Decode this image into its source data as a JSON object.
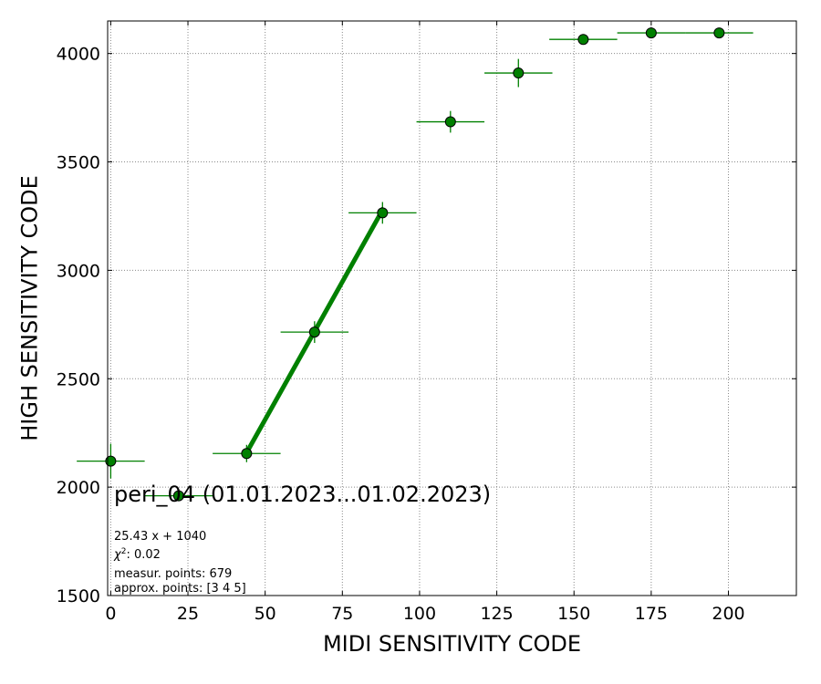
{
  "chart_data": {
    "type": "scatter",
    "xlabel": "MIDI SENSITIVITY CODE",
    "ylabel": "HIGH SENSITIVITY CODE",
    "xlim": [
      -1,
      222
    ],
    "ylim": [
      1500,
      4150
    ],
    "x_ticks": [
      0,
      25,
      50,
      75,
      100,
      125,
      150,
      175,
      200
    ],
    "y_ticks": [
      1500,
      2000,
      2500,
      3000,
      3500,
      4000
    ],
    "grid": true,
    "marker_color": "#008000",
    "points": [
      {
        "x": 0,
        "y": 2120,
        "xerr": 11,
        "yerr": 80
      },
      {
        "x": 22,
        "y": 1960,
        "xerr": 11,
        "yerr": 25
      },
      {
        "x": 44,
        "y": 2155,
        "xerr": 11,
        "yerr": 40
      },
      {
        "x": 66,
        "y": 2715,
        "xerr": 11,
        "yerr": 50
      },
      {
        "x": 88,
        "y": 3265,
        "xerr": 11,
        "yerr": 50
      },
      {
        "x": 110,
        "y": 3685,
        "xerr": 11,
        "yerr": 50
      },
      {
        "x": 132,
        "y": 3910,
        "xerr": 11,
        "yerr": 65
      },
      {
        "x": 153,
        "y": 4065,
        "xerr": 11,
        "yerr": 15
      },
      {
        "x": 175,
        "y": 4095,
        "xerr": 11,
        "yerr": 5
      },
      {
        "x": 197,
        "y": 4095,
        "xerr": 11,
        "yerr": 5
      }
    ],
    "fit_line": {
      "x": [
        44,
        88
      ],
      "y": [
        2159,
        3278
      ]
    },
    "annotations": {
      "title": "peri_04 (01.01.2023...01.02.2023)",
      "equation": "25.43 x + 1040",
      "chi2_value": ": 0.02",
      "measur_points": "measur. points: 679",
      "approx_points": "approx. points: [3 4 5]"
    }
  }
}
